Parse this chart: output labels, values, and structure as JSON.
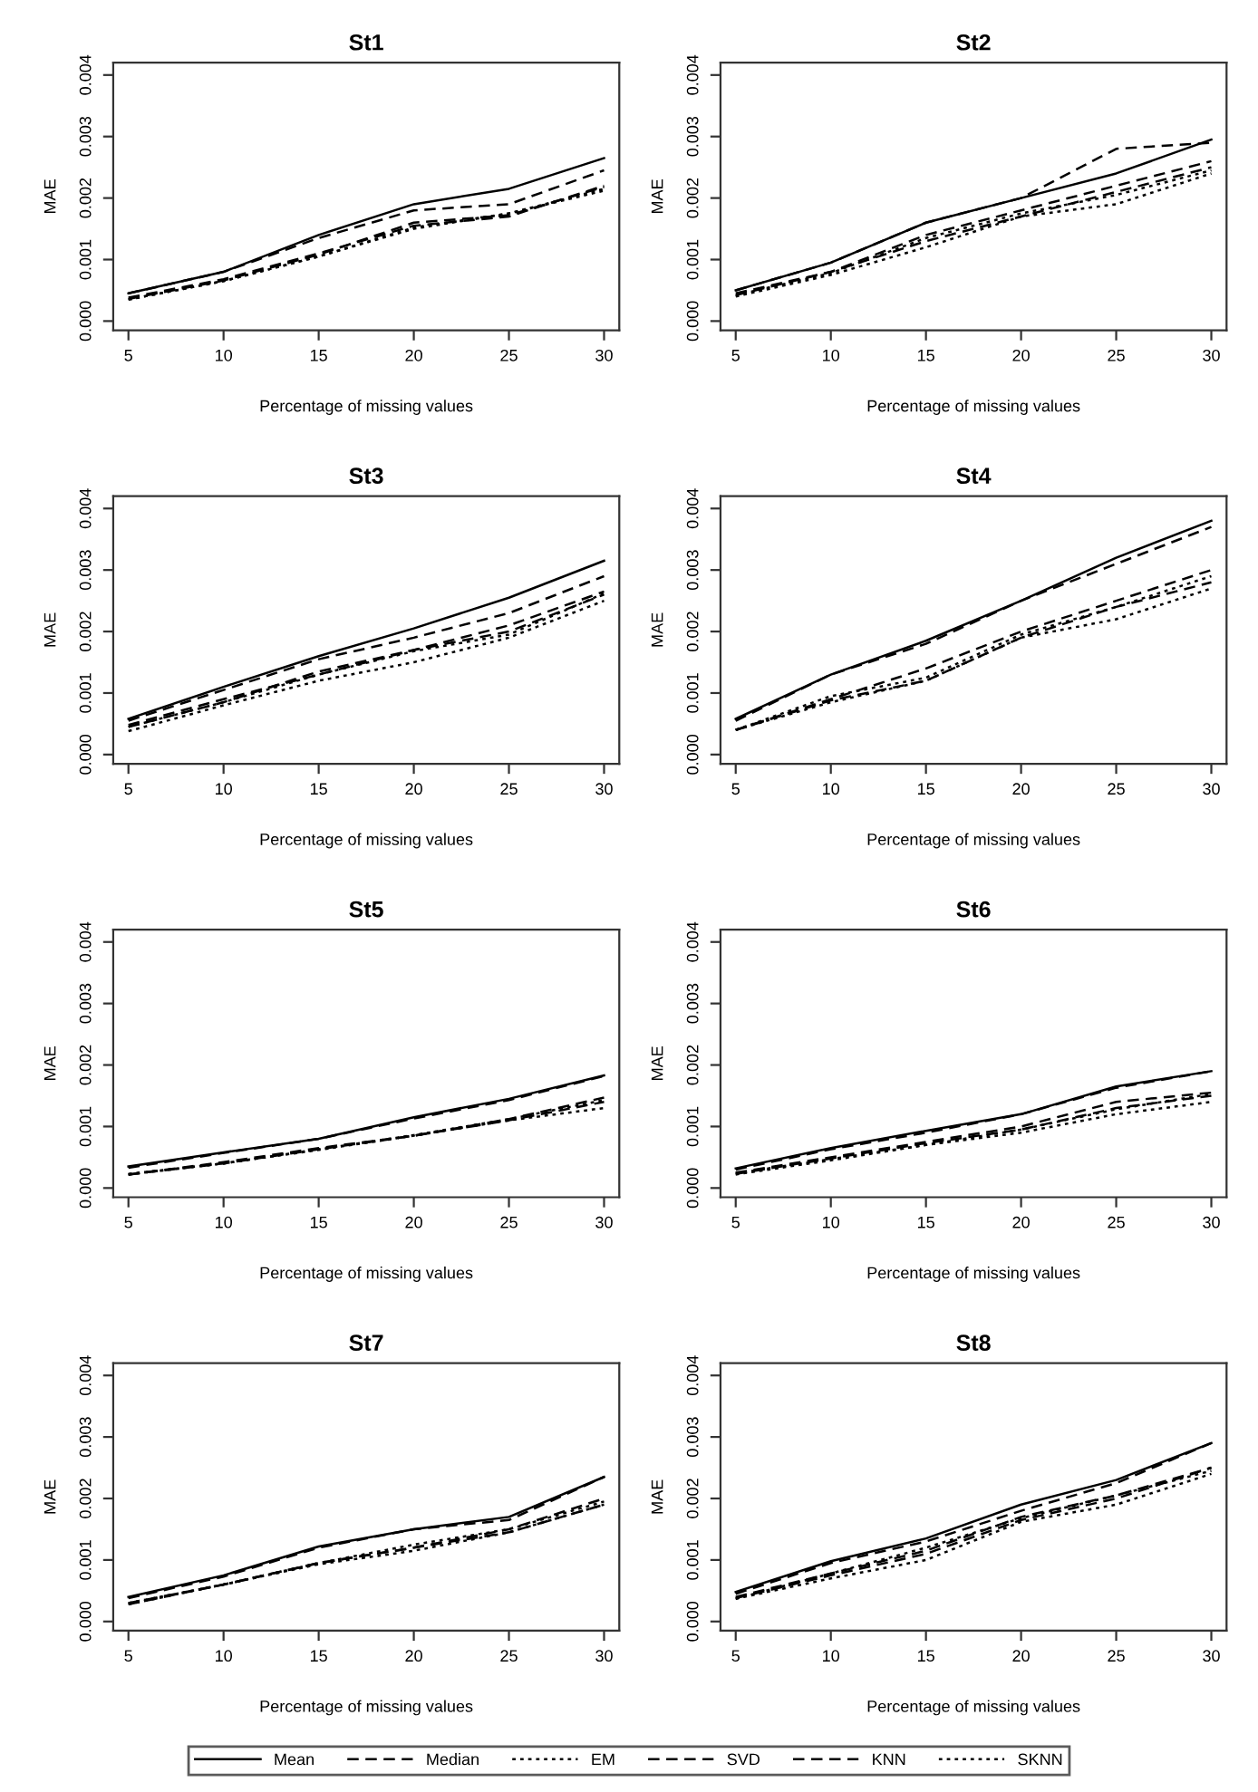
{
  "chart_data": [
    {
      "type": "line",
      "title": "St1",
      "xlabel": "Percentage of missing values",
      "ylabel": "MAE",
      "xlim": [
        4.2,
        30.8
      ],
      "ylim": [
        -0.00015,
        0.0042
      ],
      "xticks": [
        5,
        10,
        15,
        20,
        25,
        30
      ],
      "yticks": [
        {
          "value": 0,
          "label": "0.000"
        },
        {
          "value": 0.001,
          "label": "0.001"
        },
        {
          "value": 0.002,
          "label": "0.002"
        },
        {
          "value": 0.003,
          "label": "0.003"
        },
        {
          "value": 0.004,
          "label": "0.004"
        }
      ],
      "x": [
        5,
        10,
        15,
        20,
        25,
        30
      ],
      "legend": "bottom",
      "series": [
        {
          "name": "Mean",
          "color": "#000000",
          "line_style": "solid",
          "values": [
            0.00045,
            0.0008,
            0.0014,
            0.0019,
            0.00215,
            0.00265
          ]
        },
        {
          "name": "Median",
          "color": "#000000",
          "line_style": "dashed",
          "values": [
            0.00045,
            0.0008,
            0.00135,
            0.0018,
            0.0019,
            0.00245
          ]
        },
        {
          "name": "EM",
          "color": "#000000",
          "line_style": "dotted",
          "values": [
            0.00035,
            0.00065,
            0.00105,
            0.0015,
            0.00175,
            0.00215
          ]
        },
        {
          "name": "SVD",
          "color": "#000000",
          "line_style": "dashed",
          "values": [
            0.00038,
            0.00068,
            0.0011,
            0.00155,
            0.0017,
            0.0022
          ]
        },
        {
          "name": "KNN",
          "color": "#000000",
          "line_style": "dashed",
          "values": [
            0.00036,
            0.00066,
            0.00108,
            0.0016,
            0.00172,
            0.00218
          ]
        },
        {
          "name": "SKNN",
          "color": "#000000",
          "line_style": "dotted",
          "values": [
            0.00035,
            0.00065,
            0.00105,
            0.00152,
            0.00175,
            0.00212
          ]
        }
      ]
    },
    {
      "type": "line",
      "title": "St2",
      "xlabel": "Percentage of missing values",
      "ylabel": "MAE",
      "xlim": [
        4.2,
        30.8
      ],
      "ylim": [
        -0.00015,
        0.0042
      ],
      "xticks": [
        5,
        10,
        15,
        20,
        25,
        30
      ],
      "yticks": [
        {
          "value": 0,
          "label": "0.000"
        },
        {
          "value": 0.001,
          "label": "0.001"
        },
        {
          "value": 0.002,
          "label": "0.002"
        },
        {
          "value": 0.003,
          "label": "0.003"
        },
        {
          "value": 0.004,
          "label": "0.004"
        }
      ],
      "x": [
        5,
        10,
        15,
        20,
        25,
        30
      ],
      "series": [
        {
          "color": "#000000",
          "line_style": "solid",
          "values": [
            0.0005,
            0.00095,
            0.0016,
            0.002,
            0.0024,
            0.00295
          ]
        },
        {
          "color": "#000000",
          "line_style": "dashed",
          "values": [
            0.0005,
            0.00095,
            0.0016,
            0.002,
            0.0028,
            0.0029
          ]
        },
        {
          "color": "#000000",
          "line_style": "dotted",
          "values": [
            0.0004,
            0.00075,
            0.0012,
            0.0017,
            0.0019,
            0.0024
          ]
        },
        {
          "color": "#000000",
          "line_style": "dashed",
          "values": [
            0.00045,
            0.0008,
            0.0014,
            0.0018,
            0.0022,
            0.0026
          ]
        },
        {
          "color": "#000000",
          "line_style": "dashed",
          "values": [
            0.00042,
            0.0008,
            0.0013,
            0.0017,
            0.0021,
            0.0025
          ]
        },
        {
          "color": "#000000",
          "line_style": "dotted",
          "values": [
            0.00042,
            0.00078,
            0.00135,
            0.00175,
            0.00205,
            0.00245
          ]
        }
      ]
    },
    {
      "type": "line",
      "title": "St3",
      "xlabel": "Percentage of missing values",
      "ylabel": "MAE",
      "xlim": [
        4.2,
        30.8
      ],
      "ylim": [
        -0.00015,
        0.0042
      ],
      "xticks": [
        5,
        10,
        15,
        20,
        25,
        30
      ],
      "yticks": [
        {
          "value": 0,
          "label": "0.000"
        },
        {
          "value": 0.001,
          "label": "0.001"
        },
        {
          "value": 0.002,
          "label": "0.002"
        },
        {
          "value": 0.003,
          "label": "0.003"
        },
        {
          "value": 0.004,
          "label": "0.004"
        }
      ],
      "x": [
        5,
        10,
        15,
        20,
        25,
        30
      ],
      "series": [
        {
          "color": "#000000",
          "line_style": "solid",
          "values": [
            0.00058,
            0.0011,
            0.0016,
            0.00205,
            0.00255,
            0.00315
          ]
        },
        {
          "color": "#000000",
          "line_style": "dashed",
          "values": [
            0.00055,
            0.00105,
            0.00155,
            0.0019,
            0.0023,
            0.0029
          ]
        },
        {
          "color": "#000000",
          "line_style": "dotted",
          "values": [
            0.00038,
            0.0008,
            0.0012,
            0.0015,
            0.0019,
            0.0025
          ]
        },
        {
          "color": "#000000",
          "line_style": "dashed",
          "values": [
            0.00045,
            0.00085,
            0.00135,
            0.0017,
            0.0021,
            0.00265
          ]
        },
        {
          "color": "#000000",
          "line_style": "dashed",
          "values": [
            0.00048,
            0.0009,
            0.0013,
            0.0017,
            0.002,
            0.0026
          ]
        },
        {
          "color": "#000000",
          "line_style": "dotted",
          "values": [
            0.00045,
            0.00085,
            0.0013,
            0.00168,
            0.00195,
            0.00262
          ]
        }
      ]
    },
    {
      "type": "line",
      "title": "St4",
      "xlabel": "Percentage of missing values",
      "ylabel": "MAE",
      "xlim": [
        4.2,
        30.8
      ],
      "ylim": [
        -0.00015,
        0.0042
      ],
      "xticks": [
        5,
        10,
        15,
        20,
        25,
        30
      ],
      "yticks": [
        {
          "value": 0,
          "label": "0.000"
        },
        {
          "value": 0.001,
          "label": "0.001"
        },
        {
          "value": 0.002,
          "label": "0.002"
        },
        {
          "value": 0.003,
          "label": "0.003"
        },
        {
          "value": 0.004,
          "label": "0.004"
        }
      ],
      "x": [
        5,
        10,
        15,
        20,
        25,
        30
      ],
      "series": [
        {
          "color": "#000000",
          "line_style": "solid",
          "values": [
            0.00058,
            0.0013,
            0.00185,
            0.0025,
            0.0032,
            0.0038
          ]
        },
        {
          "color": "#000000",
          "line_style": "dashed",
          "values": [
            0.00055,
            0.0013,
            0.0018,
            0.0025,
            0.0031,
            0.0037
          ]
        },
        {
          "color": "#000000",
          "line_style": "dotted",
          "values": [
            0.0004,
            0.00085,
            0.0012,
            0.0019,
            0.0022,
            0.0027
          ]
        },
        {
          "color": "#000000",
          "line_style": "dashed",
          "values": [
            0.0004,
            0.0009,
            0.0014,
            0.002,
            0.0025,
            0.003
          ]
        },
        {
          "color": "#000000",
          "line_style": "dashed",
          "values": [
            0.0004,
            0.00088,
            0.0012,
            0.0019,
            0.0024,
            0.0028
          ]
        },
        {
          "color": "#000000",
          "line_style": "dotted",
          "values": [
            0.0004,
            0.00095,
            0.00125,
            0.00195,
            0.0024,
            0.0029
          ]
        }
      ]
    },
    {
      "type": "line",
      "title": "St5",
      "xlabel": "Percentage of missing values",
      "ylabel": "MAE",
      "xlim": [
        4.2,
        30.8
      ],
      "ylim": [
        -0.00015,
        0.0042
      ],
      "xticks": [
        5,
        10,
        15,
        20,
        25,
        30
      ],
      "yticks": [
        {
          "value": 0,
          "label": "0.000"
        },
        {
          "value": 0.001,
          "label": "0.001"
        },
        {
          "value": 0.002,
          "label": "0.002"
        },
        {
          "value": 0.003,
          "label": "0.003"
        },
        {
          "value": 0.004,
          "label": "0.004"
        }
      ],
      "x": [
        5,
        10,
        15,
        20,
        25,
        30
      ],
      "series": [
        {
          "color": "#000000",
          "line_style": "solid",
          "values": [
            0.00035,
            0.00058,
            0.0008,
            0.00115,
            0.00145,
            0.00183
          ]
        },
        {
          "color": "#000000",
          "line_style": "dashed",
          "values": [
            0.00033,
            0.00057,
            0.0008,
            0.00113,
            0.00143,
            0.00182
          ]
        },
        {
          "color": "#000000",
          "line_style": "dotted",
          "values": [
            0.00022,
            0.0004,
            0.00062,
            0.00085,
            0.0011,
            0.0013
          ]
        },
        {
          "color": "#000000",
          "line_style": "dashed",
          "values": [
            0.00022,
            0.00042,
            0.00065,
            0.00085,
            0.00112,
            0.00147
          ]
        },
        {
          "color": "#000000",
          "line_style": "dashed",
          "values": [
            0.00022,
            0.0004,
            0.00063,
            0.00085,
            0.0011,
            0.0014
          ]
        },
        {
          "color": "#000000",
          "line_style": "dotted",
          "values": [
            0.00023,
            0.0004,
            0.00063,
            0.00086,
            0.00112,
            0.00143
          ]
        }
      ]
    },
    {
      "type": "line",
      "title": "St6",
      "xlabel": "Percentage of missing values",
      "ylabel": "MAE",
      "xlim": [
        4.2,
        30.8
      ],
      "ylim": [
        -0.00015,
        0.0042
      ],
      "xticks": [
        5,
        10,
        15,
        20,
        25,
        30
      ],
      "yticks": [
        {
          "value": 0,
          "label": "0.000"
        },
        {
          "value": 0.001,
          "label": "0.001"
        },
        {
          "value": 0.002,
          "label": "0.002"
        },
        {
          "value": 0.003,
          "label": "0.003"
        },
        {
          "value": 0.004,
          "label": "0.004"
        }
      ],
      "x": [
        5,
        10,
        15,
        20,
        25,
        30
      ],
      "series": [
        {
          "color": "#000000",
          "line_style": "solid",
          "values": [
            0.00032,
            0.00065,
            0.00093,
            0.0012,
            0.00165,
            0.0019
          ]
        },
        {
          "color": "#000000",
          "line_style": "dashed",
          "values": [
            0.0003,
            0.00063,
            0.0009,
            0.0012,
            0.00163,
            0.0019
          ]
        },
        {
          "color": "#000000",
          "line_style": "dotted",
          "values": [
            0.00022,
            0.00045,
            0.0007,
            0.0009,
            0.0012,
            0.0014
          ]
        },
        {
          "color": "#000000",
          "line_style": "dashed",
          "values": [
            0.00025,
            0.0005,
            0.00075,
            0.001,
            0.0014,
            0.00155
          ]
        },
        {
          "color": "#000000",
          "line_style": "dashed",
          "values": [
            0.00023,
            0.00048,
            0.00073,
            0.00095,
            0.0013,
            0.0015
          ]
        },
        {
          "color": "#000000",
          "line_style": "dotted",
          "values": [
            0.00024,
            0.00047,
            0.0007,
            0.00095,
            0.00128,
            0.00153
          ]
        }
      ]
    },
    {
      "type": "line",
      "title": "St7",
      "xlabel": "Percentage of missing values",
      "ylabel": "MAE",
      "xlim": [
        4.2,
        30.8
      ],
      "ylim": [
        -0.00015,
        0.0042
      ],
      "xticks": [
        5,
        10,
        15,
        20,
        25,
        30
      ],
      "yticks": [
        {
          "value": 0,
          "label": "0.000"
        },
        {
          "value": 0.001,
          "label": "0.001"
        },
        {
          "value": 0.002,
          "label": "0.002"
        },
        {
          "value": 0.003,
          "label": "0.003"
        },
        {
          "value": 0.004,
          "label": "0.004"
        }
      ],
      "x": [
        5,
        10,
        15,
        20,
        25,
        30
      ],
      "series": [
        {
          "color": "#000000",
          "line_style": "solid",
          "values": [
            0.0004,
            0.00075,
            0.00122,
            0.0015,
            0.0017,
            0.00235
          ]
        },
        {
          "color": "#000000",
          "line_style": "dashed",
          "values": [
            0.00038,
            0.00073,
            0.0012,
            0.0015,
            0.00165,
            0.00235
          ]
        },
        {
          "color": "#000000",
          "line_style": "dotted",
          "values": [
            0.00028,
            0.0006,
            0.00093,
            0.00115,
            0.00145,
            0.0019
          ]
        },
        {
          "color": "#000000",
          "line_style": "dashed",
          "values": [
            0.0003,
            0.0006,
            0.00095,
            0.0012,
            0.0015,
            0.002
          ]
        },
        {
          "color": "#000000",
          "line_style": "dashed",
          "values": [
            0.00028,
            0.0006,
            0.00095,
            0.0012,
            0.00145,
            0.0019
          ]
        },
        {
          "color": "#000000",
          "line_style": "dotted",
          "values": [
            0.0003,
            0.0006,
            0.00095,
            0.00125,
            0.0015,
            0.00195
          ]
        }
      ]
    },
    {
      "type": "line",
      "title": "St8",
      "xlabel": "Percentage of missing values",
      "ylabel": "MAE",
      "xlim": [
        4.2,
        30.8
      ],
      "ylim": [
        -0.00015,
        0.0042
      ],
      "xticks": [
        5,
        10,
        15,
        20,
        25,
        30
      ],
      "yticks": [
        {
          "value": 0,
          "label": "0.000"
        },
        {
          "value": 0.001,
          "label": "0.001"
        },
        {
          "value": 0.002,
          "label": "0.002"
        },
        {
          "value": 0.003,
          "label": "0.003"
        },
        {
          "value": 0.004,
          "label": "0.004"
        }
      ],
      "x": [
        5,
        10,
        15,
        20,
        25,
        30
      ],
      "series": [
        {
          "color": "#000000",
          "line_style": "solid",
          "values": [
            0.00048,
            0.00098,
            0.00135,
            0.0019,
            0.0023,
            0.0029
          ]
        },
        {
          "color": "#000000",
          "line_style": "dashed",
          "values": [
            0.00045,
            0.00095,
            0.0013,
            0.0018,
            0.00225,
            0.0029
          ]
        },
        {
          "color": "#000000",
          "line_style": "dotted",
          "values": [
            0.00037,
            0.0007,
            0.001,
            0.00162,
            0.0019,
            0.0024
          ]
        },
        {
          "color": "#000000",
          "line_style": "dashed",
          "values": [
            0.0004,
            0.00078,
            0.00115,
            0.0017,
            0.00205,
            0.0025
          ]
        },
        {
          "color": "#000000",
          "line_style": "dashed",
          "values": [
            0.00038,
            0.00075,
            0.0011,
            0.00165,
            0.002,
            0.0025
          ]
        },
        {
          "color": "#000000",
          "line_style": "dotted",
          "values": [
            0.00037,
            0.00078,
            0.0012,
            0.00168,
            0.00205,
            0.00245
          ]
        }
      ]
    }
  ]
}
